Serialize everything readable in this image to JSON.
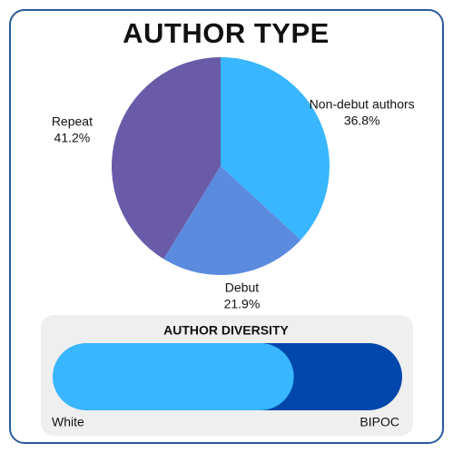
{
  "chart_data": [
    {
      "type": "pie",
      "title": "AUTHOR TYPE",
      "categories": [
        "Non-debut authors",
        "Debut",
        "Repeat"
      ],
      "values": [
        36.8,
        21.9,
        41.2
      ],
      "value_labels": [
        "36.8%",
        "21.9%",
        "41.2%"
      ],
      "colors": [
        "#38b6ff",
        "#5b8bdf",
        "#6a5ba8"
      ]
    },
    {
      "type": "stacked-bar",
      "title": "AUTHOR DIVERSITY",
      "series": [
        {
          "name": "White",
          "color": "#38b6ff",
          "values": [
            69
          ]
        },
        {
          "name": "BIPOC",
          "color": "#0047ab",
          "values": [
            31
          ]
        }
      ]
    }
  ]
}
